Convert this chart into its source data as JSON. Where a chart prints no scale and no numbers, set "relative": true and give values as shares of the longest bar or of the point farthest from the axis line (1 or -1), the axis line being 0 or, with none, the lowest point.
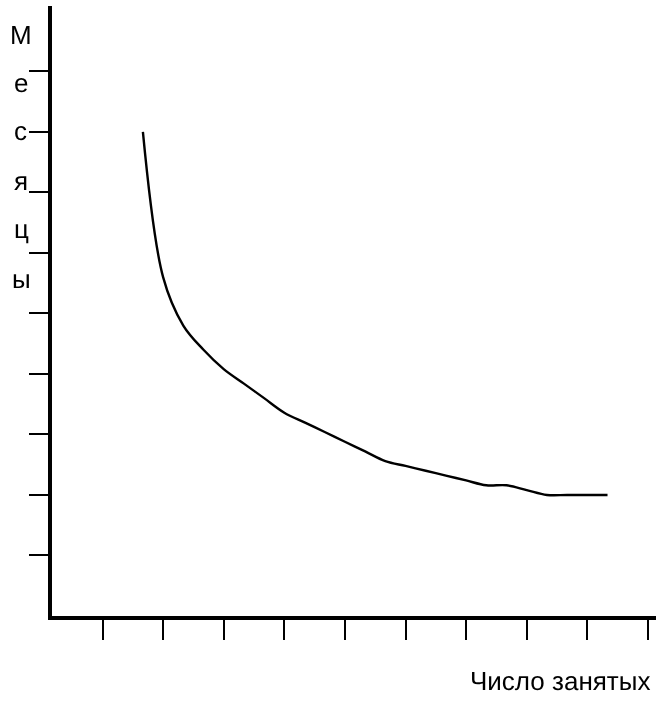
{
  "chart_data": {
    "type": "line",
    "relative": true,
    "xlabel": "Число занятых",
    "ylabel": "Месяцы",
    "color": "#000000",
    "marker": "none",
    "legend": false,
    "categories": [
      null,
      null,
      null,
      null,
      null,
      null,
      null,
      null,
      null,
      null,
      null,
      null,
      null,
      null,
      null,
      null,
      null,
      null,
      null,
      null,
      null,
      null,
      null,
      null,
      null,
      null,
      null,
      null,
      null,
      null
    ],
    "values": [
      null,
      null,
      null,
      null,
      1,
      0.7,
      0.6,
      0.55,
      0.51,
      0.48,
      0.45,
      0.42,
      0.4,
      0.38,
      0.36,
      0.34,
      0.32,
      0.31,
      0.3,
      0.29,
      0.28,
      0.27,
      0.27,
      0.26,
      0.25,
      0.25,
      0.25,
      0.25,
      null,
      null
    ]
  }
}
